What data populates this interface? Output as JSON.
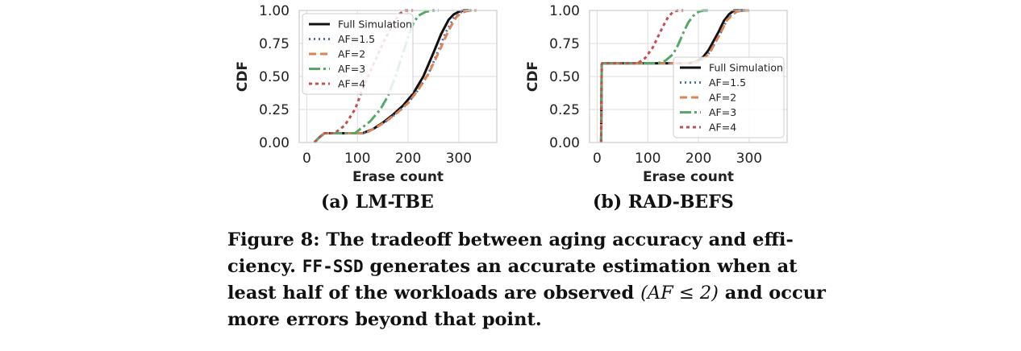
{
  "colors": {
    "Full Simulation": "#111111",
    "AF=1.5": "#4c72b0",
    "AF=2": "#dd8452",
    "AF=3": "#55a868",
    "AF=4": "#c44e52",
    "grid": "#dedede",
    "frame": "#cccccc"
  },
  "chart_data": [
    {
      "type": "line",
      "title": "(a) LM-TBE",
      "xlabel": "Erase count",
      "ylabel": "CDF",
      "xlim": [
        -15,
        375
      ],
      "ylim": [
        0,
        1
      ],
      "xticks": [
        "0",
        "100",
        "200",
        "300"
      ],
      "yticks": [
        "0.00",
        "0.25",
        "0.50",
        "0.75",
        "1.00"
      ],
      "grid": true,
      "legend_position": "upper-left",
      "legend": [
        "Full Simulation",
        "AF=1.5",
        "AF=2",
        "AF=3",
        "AF=4"
      ],
      "series": [
        {
          "name": "Full Simulation",
          "x": [
            15,
            25,
            35,
            100,
            110,
            130,
            150,
            170,
            190,
            210,
            230,
            250,
            265,
            280,
            290,
            300,
            310,
            320
          ],
          "y": [
            0,
            0.04,
            0.07,
            0.07,
            0.07,
            0.1,
            0.15,
            0.21,
            0.28,
            0.37,
            0.5,
            0.68,
            0.82,
            0.93,
            0.97,
            0.99,
            1,
            1
          ]
        },
        {
          "name": "AF=1.5",
          "x": [
            15,
            25,
            35,
            110,
            120,
            140,
            160,
            180,
            200,
            220,
            240,
            260,
            275,
            290,
            300,
            310,
            320,
            330
          ],
          "y": [
            0,
            0.04,
            0.07,
            0.07,
            0.08,
            0.12,
            0.17,
            0.23,
            0.3,
            0.4,
            0.52,
            0.7,
            0.84,
            0.94,
            0.98,
            0.995,
            1,
            1
          ]
        },
        {
          "name": "AF=2",
          "x": [
            15,
            25,
            35,
            110,
            120,
            140,
            160,
            180,
            200,
            220,
            240,
            260,
            280,
            295,
            305,
            315,
            325,
            335
          ],
          "y": [
            0,
            0.04,
            0.07,
            0.07,
            0.08,
            0.12,
            0.17,
            0.23,
            0.3,
            0.4,
            0.52,
            0.68,
            0.85,
            0.95,
            0.98,
            0.995,
            1,
            1
          ]
        },
        {
          "name": "AF=3",
          "x": [
            15,
            25,
            35,
            95,
            105,
            125,
            145,
            160,
            175,
            190,
            200,
            210,
            220,
            235,
            250,
            260
          ],
          "y": [
            0,
            0.04,
            0.07,
            0.07,
            0.1,
            0.16,
            0.25,
            0.35,
            0.5,
            0.68,
            0.8,
            0.9,
            0.96,
            0.99,
            1,
            1
          ]
        },
        {
          "name": "AF=4",
          "x": [
            15,
            25,
            35,
            55,
            75,
            95,
            115,
            135,
            150,
            165,
            175,
            185,
            195,
            210
          ],
          "y": [
            0,
            0.04,
            0.07,
            0.07,
            0.13,
            0.25,
            0.45,
            0.62,
            0.75,
            0.86,
            0.93,
            0.98,
            1,
            1
          ]
        }
      ]
    },
    {
      "type": "line",
      "title": "(b) RAD-BEFS",
      "xlabel": "Erase count",
      "ylabel": "CDF",
      "xlim": [
        -15,
        375
      ],
      "ylim": [
        0,
        1
      ],
      "xticks": [
        "0",
        "100",
        "200",
        "300"
      ],
      "yticks": [
        "0.00",
        "0.25",
        "0.50",
        "0.75",
        "1.00"
      ],
      "grid": true,
      "legend_position": "lower-right",
      "legend": [
        "Full Simulation",
        "AF=1.5",
        "AF=2",
        "AF=3",
        "AF=4"
      ],
      "series": [
        {
          "name": "Full Simulation",
          "x": [
            8,
            9,
            10,
            180,
            195,
            210,
            220,
            230,
            240,
            250,
            260,
            270,
            280,
            300
          ],
          "y": [
            0,
            0.59,
            0.6,
            0.6,
            0.61,
            0.65,
            0.7,
            0.77,
            0.84,
            0.92,
            0.97,
            1,
            1,
            1
          ]
        },
        {
          "name": "AF=1.5",
          "x": [
            8,
            9,
            10,
            185,
            200,
            215,
            225,
            235,
            245,
            255,
            265,
            275,
            285,
            300
          ],
          "y": [
            0,
            0.59,
            0.6,
            0.6,
            0.61,
            0.65,
            0.7,
            0.77,
            0.84,
            0.92,
            0.97,
            0.99,
            1,
            1
          ]
        },
        {
          "name": "AF=2",
          "x": [
            8,
            9,
            10,
            185,
            200,
            215,
            225,
            235,
            245,
            255,
            265,
            275,
            285,
            300
          ],
          "y": [
            0,
            0.59,
            0.6,
            0.6,
            0.61,
            0.65,
            0.7,
            0.77,
            0.84,
            0.92,
            0.96,
            0.99,
            1,
            1
          ]
        },
        {
          "name": "AF=3",
          "x": [
            8,
            9,
            10,
            120,
            135,
            150,
            160,
            170,
            180,
            190,
            200,
            210,
            220
          ],
          "y": [
            0,
            0.59,
            0.6,
            0.6,
            0.62,
            0.67,
            0.74,
            0.83,
            0.91,
            0.96,
            0.99,
            1,
            1
          ]
        },
        {
          "name": "AF=4",
          "x": [
            8,
            9,
            10,
            80,
            95,
            110,
            120,
            130,
            140,
            150,
            160,
            170
          ],
          "y": [
            0,
            0.59,
            0.6,
            0.6,
            0.64,
            0.72,
            0.8,
            0.88,
            0.95,
            0.99,
            1,
            1
          ]
        }
      ]
    }
  ],
  "caption": {
    "label": "Figure 8:",
    "text_1": " The tradeoff between aging accuracy and effi-ciency. ",
    "code": "FF-SSD",
    "text_2": " generates an accurate estimation when at least half of the workloads are observed ",
    "math": "(AF ≤ 2)",
    "text_3": " and occur more errors beyond that point."
  }
}
